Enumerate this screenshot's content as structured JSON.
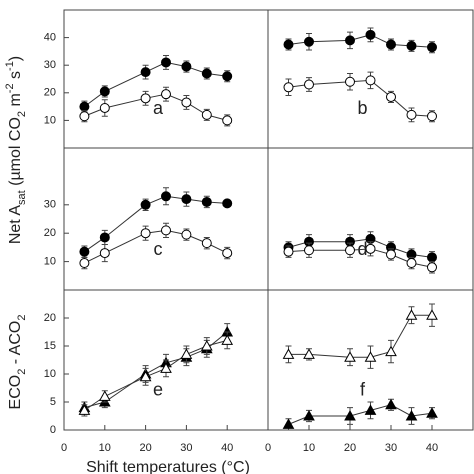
{
  "y_label_top": [
    "Net A",
    "sat",
    " (µmol CO",
    "2",
    " m",
    "-2",
    " s",
    "-1",
    ")"
  ],
  "y_label_bottom": [
    "ECO",
    "2",
    " - ACO",
    "2"
  ],
  "x_label": "Shift temperatures (°C)",
  "chart_data": [
    {
      "type": "line",
      "annotation": "a",
      "x": [
        5,
        10,
        20,
        25,
        30,
        35,
        40
      ],
      "xlim": [
        0,
        50
      ],
      "ylim": [
        0,
        50
      ],
      "yticks": [
        10,
        20,
        30,
        40
      ],
      "series": [
        {
          "marker": "circle",
          "color": "#000000",
          "values": [
            15,
            20.5,
            27.5,
            31,
            29.5,
            27,
            26
          ],
          "errors": [
            2,
            2,
            2.5,
            2.5,
            2,
            2,
            2
          ]
        },
        {
          "marker": "circle",
          "color": "#ffffff",
          "values": [
            11.5,
            14.5,
            18,
            19.5,
            16.5,
            12,
            10
          ],
          "errors": [
            2,
            3,
            2.5,
            2.5,
            2.5,
            2,
            2
          ]
        }
      ]
    },
    {
      "type": "line",
      "annotation": "b",
      "x": [
        5,
        10,
        20,
        25,
        30,
        35,
        40
      ],
      "xlim": [
        0,
        50
      ],
      "ylim": [
        0,
        50
      ],
      "series": [
        {
          "marker": "circle",
          "color": "#000000",
          "values": [
            37.5,
            38.5,
            39,
            41,
            37.5,
            37,
            36.5
          ],
          "errors": [
            2,
            3,
            3,
            2.5,
            2,
            2,
            2
          ]
        },
        {
          "marker": "circle",
          "color": "#ffffff",
          "values": [
            22,
            23,
            24,
            24.5,
            18.5,
            12,
            11.5
          ],
          "errors": [
            3,
            2.5,
            3,
            3,
            2,
            2.5,
            2
          ]
        }
      ]
    },
    {
      "type": "line",
      "annotation": "c",
      "x": [
        5,
        10,
        20,
        25,
        30,
        35,
        40
      ],
      "xlim": [
        0,
        50
      ],
      "ylim": [
        0,
        50
      ],
      "yticks": [
        10,
        20,
        30
      ],
      "series": [
        {
          "marker": "circle",
          "color": "#000000",
          "values": [
            13.5,
            18.5,
            30,
            33,
            32,
            31,
            30.5
          ],
          "errors": [
            2,
            2.5,
            2,
            3,
            2.5,
            2,
            1
          ]
        },
        {
          "marker": "circle",
          "color": "#ffffff",
          "values": [
            9.5,
            13,
            20,
            21,
            19.5,
            16.5,
            13
          ],
          "errors": [
            2,
            3,
            2.5,
            2.5,
            2,
            2,
            2
          ]
        }
      ]
    },
    {
      "type": "line",
      "annotation": "d",
      "x": [
        5,
        10,
        20,
        25,
        30,
        35,
        40
      ],
      "xlim": [
        0,
        50
      ],
      "ylim": [
        0,
        50
      ],
      "series": [
        {
          "marker": "circle",
          "color": "#000000",
          "values": [
            15,
            17,
            17,
            18,
            15,
            12.5,
            11.5
          ],
          "errors": [
            2,
            2.5,
            2.5,
            2.5,
            2,
            2,
            2
          ]
        },
        {
          "marker": "circle",
          "color": "#ffffff",
          "values": [
            13.5,
            14,
            14,
            14.5,
            12.5,
            9.5,
            8
          ],
          "errors": [
            2,
            2.5,
            2.5,
            2.5,
            2,
            2,
            2
          ]
        }
      ]
    },
    {
      "type": "line",
      "annotation": "e",
      "x": [
        5,
        10,
        20,
        25,
        30,
        35,
        40
      ],
      "xlim": [
        0,
        50
      ],
      "ylim": [
        0,
        25
      ],
      "yticks": [
        0,
        5,
        10,
        15,
        20
      ],
      "xticks": [
        0,
        10,
        20,
        30,
        40
      ],
      "series": [
        {
          "marker": "triangle",
          "color": "#000000",
          "values": [
            4,
            5,
            10,
            12,
            13,
            14.5,
            17.5
          ],
          "errors": [
            1,
            1,
            1.5,
            1.5,
            1.5,
            1.5,
            1.5
          ]
        },
        {
          "marker": "triangle",
          "color": "#ffffff",
          "values": [
            3.5,
            6,
            9.5,
            11,
            13.5,
            15,
            16
          ],
          "errors": [
            1,
            1,
            1.5,
            1.5,
            1.5,
            1.5,
            1.5
          ]
        }
      ]
    },
    {
      "type": "line",
      "annotation": "f",
      "x": [
        5,
        10,
        20,
        25,
        30,
        35,
        40
      ],
      "xlim": [
        0,
        50
      ],
      "ylim": [
        0,
        25
      ],
      "xticks": [
        0,
        10,
        20,
        30,
        40
      ],
      "series": [
        {
          "marker": "triangle",
          "color": "#ffffff",
          "values": [
            13.5,
            13.5,
            13,
            13,
            14,
            20.5,
            20.5
          ],
          "errors": [
            1.5,
            1,
            1.5,
            2,
            2,
            1.5,
            2
          ]
        },
        {
          "marker": "triangle",
          "color": "#000000",
          "values": [
            1,
            2.5,
            2.5,
            3.5,
            4.5,
            2.5,
            3
          ],
          "errors": [
            1,
            1,
            1.5,
            1.5,
            1,
            1.5,
            1
          ]
        }
      ]
    }
  ]
}
